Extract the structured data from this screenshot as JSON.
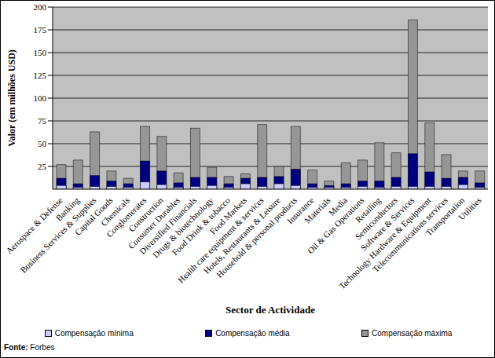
{
  "chart_data": {
    "type": "bar",
    "x_label": "Sector de Actividade",
    "y_label": "Valor (em milhões USD)",
    "categories": [
      "Aerospace & Defense",
      "Banking",
      "Business Services & Supplies",
      "Capital Goods",
      "Chemicals",
      "Conglomerates",
      "Construction",
      "Consumer Durables",
      "Diversified Financials",
      "Drugs & biotechnology",
      "Food Drink & tobacco",
      "Food Markets",
      "Health care equipment & services",
      "Hotels, Restaurants & Leisure",
      "Household & personal products",
      "Insurance",
      "Materials",
      "Media",
      "Oil & Gas Operations",
      "Retailing",
      "Semiconductors",
      "Software & Services",
      "Technology Hardware & Equipment",
      "Telecommunications services",
      "Transportation",
      "Utilities"
    ],
    "series": [
      {
        "name": "Compensação mínima",
        "color": "#ccccff",
        "values": [
          4,
          2,
          3,
          3,
          2,
          8,
          5,
          2,
          3,
          4,
          2,
          6,
          3,
          6,
          4,
          2,
          2,
          2,
          3,
          2,
          3,
          3,
          3,
          3,
          5,
          2
        ]
      },
      {
        "name": "Compensação média",
        "color": "#000080",
        "values": [
          12,
          6,
          15,
          9,
          6,
          31,
          20,
          7,
          13,
          13,
          6,
          12,
          13,
          14,
          22,
          6,
          4,
          6,
          9,
          9,
          13,
          39,
          19,
          12,
          13,
          7
        ]
      },
      {
        "name": "Compensação máxima",
        "color": "#969696",
        "values": [
          27,
          32,
          63,
          20,
          12,
          69,
          58,
          18,
          67,
          24,
          14,
          17,
          71,
          25,
          69,
          21,
          9,
          29,
          32,
          51,
          40,
          186,
          73,
          38,
          20,
          20
        ]
      }
    ],
    "ylim": [
      0,
      200
    ],
    "yticks": [
      25,
      50,
      75,
      100,
      125,
      150,
      175,
      200
    ],
    "grid": true,
    "legend": "bottom",
    "stacked": false,
    "annotation": {
      "label": "Fonte:",
      "text": "Forbes"
    }
  }
}
